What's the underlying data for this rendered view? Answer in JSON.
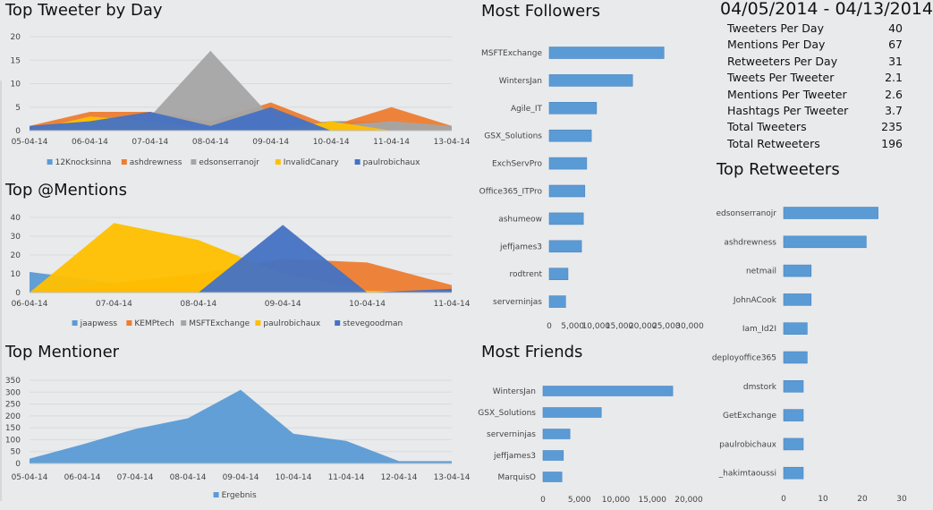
{
  "summary": {
    "date_range": "04/05/2014 - 04/13/2014",
    "stats": [
      {
        "label": "Tweeters Per Day",
        "value": "40"
      },
      {
        "label": "Mentions Per Day",
        "value": "67"
      },
      {
        "label": "Retweeters Per Day",
        "value": "31"
      },
      {
        "label": "Tweets Per Tweeter",
        "value": "2.1"
      },
      {
        "label": "Mentions Per Tweeter",
        "value": "2.6"
      },
      {
        "label": "Hashtags Per Tweeter",
        "value": "3.7"
      },
      {
        "label": "Total Tweeters",
        "value": "235"
      },
      {
        "label": "Total Retweeters",
        "value": "196"
      }
    ]
  },
  "chart_data": [
    {
      "id": "tweeter",
      "type": "area",
      "title": "Top Tweeter by Day",
      "categories": [
        "05-04-14",
        "06-04-14",
        "07-04-14",
        "08-04-14",
        "09-04-14",
        "10-04-14",
        "11-04-14",
        "13-04-14"
      ],
      "ylim": [
        0,
        20
      ],
      "yticks": [
        0,
        5,
        10,
        15,
        20
      ],
      "grid": true,
      "legend": "bottom",
      "series": [
        {
          "name": "12Knocksinna",
          "color": "#5b9bd5",
          "values": [
            0,
            1,
            1,
            0,
            1,
            2,
            2,
            1
          ]
        },
        {
          "name": "ashdrewness",
          "color": "#ed7d31",
          "values": [
            1,
            4,
            4,
            2,
            6,
            1,
            5,
            1
          ]
        },
        {
          "name": "edsonserranojr",
          "color": "#a5a5a5",
          "values": [
            0,
            1,
            3,
            17,
            3,
            1,
            2,
            1
          ]
        },
        {
          "name": "InvalidCanary",
          "color": "#ffc000",
          "values": [
            0,
            3,
            2,
            0,
            0,
            2,
            0,
            0
          ]
        },
        {
          "name": "paulrobichaux",
          "color": "#4472c4",
          "values": [
            1,
            2,
            4,
            1,
            5,
            0,
            0,
            0
          ]
        }
      ]
    },
    {
      "id": "mentions",
      "type": "area",
      "title": "Top @Mentions",
      "categories": [
        "06-04-14",
        "07-04-14",
        "08-04-14",
        "09-04-14",
        "10-04-14",
        "11-04-14"
      ],
      "ylim": [
        0,
        40
      ],
      "yticks": [
        0,
        10,
        20,
        30,
        40
      ],
      "grid": true,
      "legend": "bottom",
      "series": [
        {
          "name": "jaapwess",
          "color": "#5b9bd5",
          "values": [
            11,
            5,
            2,
            0,
            0,
            0
          ]
        },
        {
          "name": "KEMPtech",
          "color": "#ed7d31",
          "values": [
            0,
            5,
            10,
            18,
            16,
            4
          ]
        },
        {
          "name": "MSFTExchange",
          "color": "#a5a5a5",
          "values": [
            0,
            0,
            0,
            0,
            0,
            0
          ]
        },
        {
          "name": "paulrobichaux",
          "color": "#ffc000",
          "values": [
            0,
            37,
            28,
            10,
            1,
            0
          ]
        },
        {
          "name": "stevegoodman",
          "color": "#4472c4",
          "values": [
            0,
            0,
            0,
            36,
            0,
            2
          ]
        }
      ]
    },
    {
      "id": "mentioner",
      "type": "area",
      "title": "Top Mentioner",
      "categories": [
        "05-04-14",
        "06-04-14",
        "07-04-14",
        "08-04-14",
        "09-04-14",
        "10-04-14",
        "11-04-14",
        "12-04-14",
        "13-04-14"
      ],
      "ylim": [
        0,
        350
      ],
      "yticks": [
        0,
        50,
        100,
        150,
        200,
        250,
        300,
        350
      ],
      "grid": true,
      "legend": "bottom",
      "series": [
        {
          "name": "Ergebnis",
          "color": "#5b9bd5",
          "values": [
            20,
            80,
            145,
            190,
            310,
            125,
            95,
            10,
            10
          ]
        }
      ]
    },
    {
      "id": "followers",
      "type": "bar",
      "orientation": "horizontal",
      "title": "Most Followers",
      "color": "#5b9bd5",
      "categories": [
        "MSFTExchange",
        "WintersJan",
        "Agile_IT",
        "GSX_Solutions",
        "ExchServPro",
        "Office365_ITPro",
        "ashumeow",
        "jeffjames3",
        "rodtrent",
        "serverninjas"
      ],
      "values": [
        24500,
        17800,
        10100,
        9000,
        8000,
        7600,
        7300,
        6900,
        4000,
        3500
      ],
      "xlim": [
        0,
        30000
      ],
      "xticks": [
        "0",
        "5,000",
        "10,000",
        "15,000",
        "20,000",
        "25,000",
        "30,000"
      ]
    },
    {
      "id": "friends",
      "type": "bar",
      "orientation": "horizontal",
      "title": "Most Friends",
      "color": "#5b9bd5",
      "categories": [
        "WintersJan",
        "GSX_Solutions",
        "serverninjas",
        "jeffjames3",
        "MarquisO"
      ],
      "values": [
        17800,
        8000,
        3700,
        2800,
        2600
      ],
      "xlim": [
        0,
        20000
      ],
      "xticks": [
        "0",
        "5,000",
        "10,000",
        "15,000",
        "20,000"
      ]
    },
    {
      "id": "retweeters",
      "type": "bar",
      "orientation": "horizontal",
      "title": "Top Retweeters",
      "color": "#5b9bd5",
      "categories": [
        "edsonserranojr",
        "ashdrewness",
        "netmail",
        "JohnACook",
        "Iam_Id2I",
        "deployoffice365",
        "dmstork",
        "GetExchange",
        "paulrobichaux",
        "_hakimtaoussi"
      ],
      "values": [
        24,
        21,
        7,
        7,
        6,
        6,
        5,
        5,
        5,
        5
      ],
      "xlim": [
        0,
        30
      ],
      "xticks": [
        "0",
        "10",
        "20",
        "30"
      ]
    }
  ]
}
